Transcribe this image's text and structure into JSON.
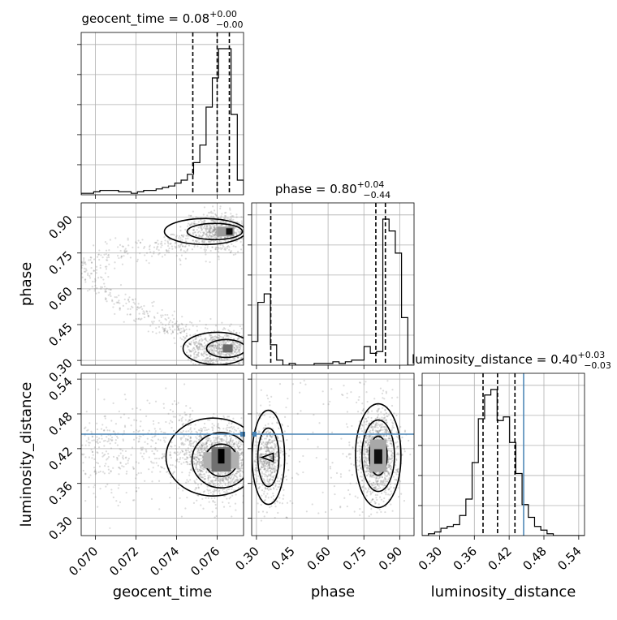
{
  "chart_data": {
    "type": "corner",
    "parameters": [
      "geocent_time",
      "phase",
      "luminosity_distance"
    ],
    "titles": [
      {
        "param": "geocent_time",
        "prefix": "geocent_time = ",
        "median": "0.08",
        "plus": "+0.00",
        "minus": "−0.00"
      },
      {
        "param": "phase",
        "prefix": "phase = ",
        "median": "0.80",
        "plus": "+0.04",
        "minus": "−0.44"
      },
      {
        "param": "luminosity_distance",
        "prefix": "luminosity_distance = ",
        "median": "0.40",
        "plus": "+0.03",
        "minus": "−0.03"
      }
    ],
    "ranges": {
      "geocent_time": [
        0.0693,
        0.0773
      ],
      "phase": [
        0.28,
        0.96
      ],
      "luminosity_distance": [
        0.27,
        0.55
      ]
    },
    "ticks": {
      "geocent_time": {
        "values": [
          0.07,
          0.072,
          0.074,
          0.076
        ],
        "labels": [
          "0.070",
          "0.072",
          "0.074",
          "0.076"
        ]
      },
      "phase": {
        "values": [
          0.3,
          0.45,
          0.6,
          0.75,
          0.9
        ],
        "labels": [
          "0.30",
          "0.45",
          "0.60",
          "0.75",
          "0.90"
        ]
      },
      "luminosity_distance": {
        "values": [
          0.3,
          0.36,
          0.42,
          0.48,
          0.54
        ],
        "labels": [
          "0.30",
          "0.36",
          "0.42",
          "0.48",
          "0.54"
        ]
      }
    },
    "quantiles": {
      "geocent_time": [
        0.0748,
        0.076,
        0.0766
      ],
      "phase": [
        0.36,
        0.8,
        0.84
      ],
      "luminosity_distance": [
        0.375,
        0.4,
        0.43
      ]
    },
    "truths": {
      "luminosity_distance": 0.445
    },
    "histograms": {
      "geocent_time": {
        "edges_range": [
          0.0693,
          0.0773
        ],
        "counts": [
          1,
          1,
          2,
          3,
          3,
          3,
          2,
          2,
          1,
          2,
          3,
          3,
          4,
          5,
          6,
          8,
          10,
          14,
          22,
          34,
          60,
          80,
          100,
          100,
          55,
          10
        ]
      },
      "phase": {
        "edges_range": [
          0.28,
          0.96
        ],
        "counts": [
          14,
          37,
          42,
          12,
          3,
          0,
          1,
          0,
          0,
          0,
          1,
          1,
          1,
          2,
          1,
          2,
          3,
          3,
          11,
          7,
          8,
          86,
          79,
          66,
          28,
          0
        ]
      },
      "luminosity_distance": {
        "edges_range": [
          0.27,
          0.55
        ],
        "counts": [
          0,
          1,
          2,
          4,
          5,
          6,
          11,
          20,
          40,
          64,
          77,
          80,
          63,
          65,
          51,
          34,
          17,
          10,
          5,
          3,
          1,
          0,
          0,
          0,
          0,
          0
        ]
      }
    },
    "grid": true,
    "grid_color": "#b0b0b0",
    "truth_color": "#4682b4",
    "sample_color": "#808080"
  }
}
